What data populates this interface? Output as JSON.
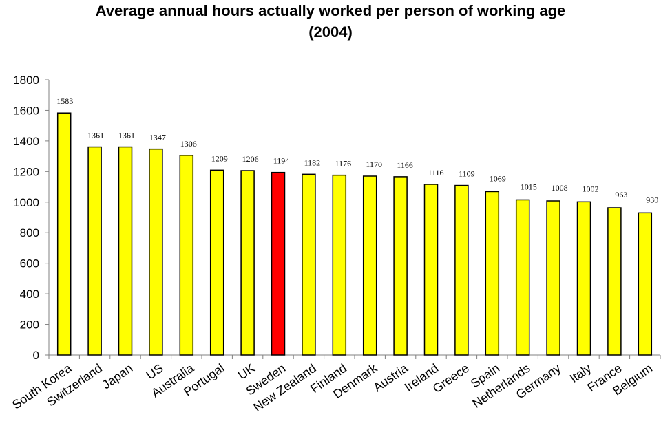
{
  "chart_data": {
    "type": "bar",
    "title": "Average annual hours actually worked per person of working age\n(2004)",
    "xlabel": "",
    "ylabel": "",
    "ylim": [
      0,
      1800
    ],
    "yticks": [
      0,
      200,
      400,
      600,
      800,
      1000,
      1200,
      1400,
      1600,
      1800
    ],
    "grid": false,
    "legend": "none",
    "categories": [
      "South Korea",
      "Switzerland",
      "Japan",
      "US",
      "Australia",
      "Portugal",
      "UK",
      "Sweden",
      "New Zealand",
      "Finland",
      "Denmark",
      "Austria",
      "Ireland",
      "Greece",
      "Spain",
      "Netherlands",
      "Germany",
      "Italy",
      "France",
      "Belgium"
    ],
    "values": [
      1583,
      1361,
      1361,
      1347,
      1306,
      1209,
      1206,
      1194,
      1182,
      1176,
      1170,
      1166,
      1116,
      1109,
      1069,
      1015,
      1008,
      1002,
      963,
      930
    ],
    "colors": {
      "default": "#FFFF00",
      "highlight": "#FF0000",
      "stroke": "#000000",
      "axis": "#808080"
    },
    "highlight_category": "Sweden"
  }
}
